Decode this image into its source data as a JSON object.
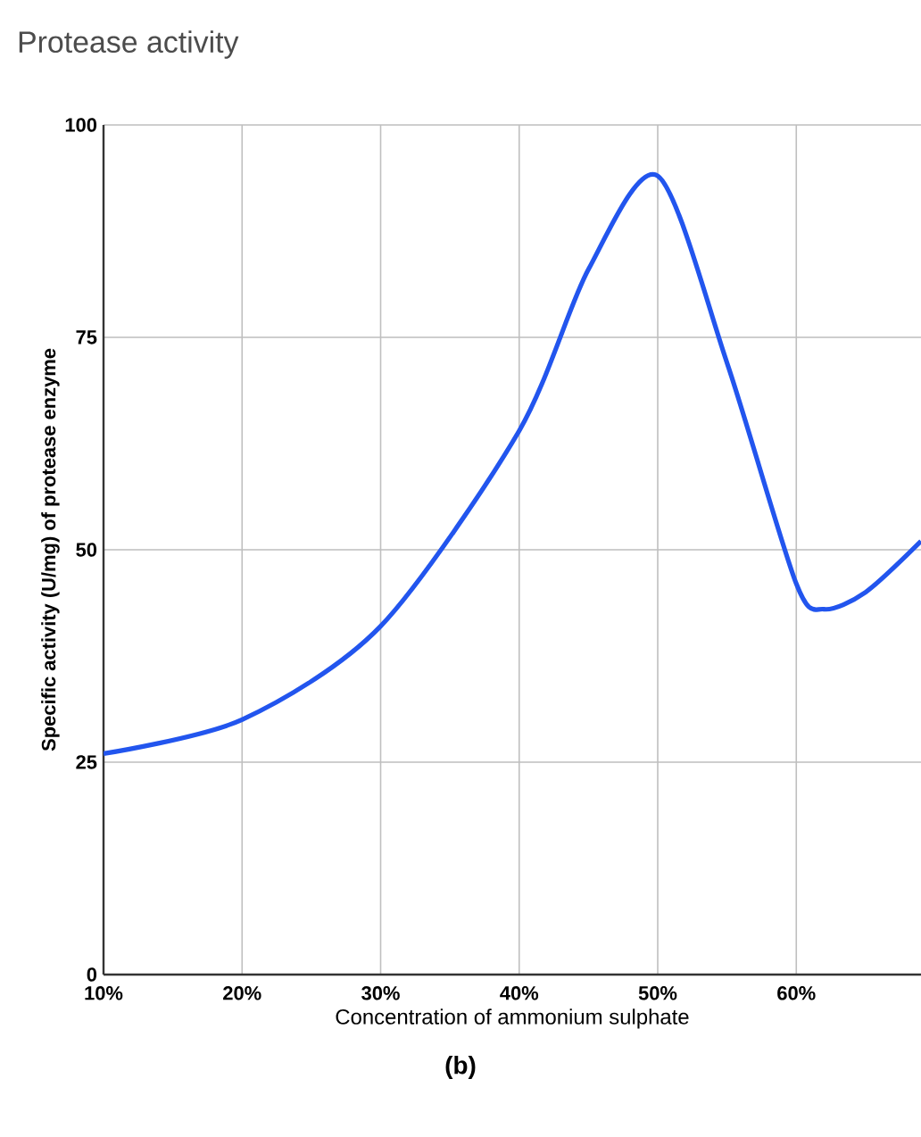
{
  "chart_data": {
    "type": "line",
    "title": "Protease activity",
    "xlabel": "Concentration of ammonium sulphate",
    "ylabel": "Specific activity (U/mg) of protease enzyme",
    "annotations": [
      "(b)"
    ],
    "x": [
      10,
      20,
      30,
      40,
      45,
      50,
      55,
      60,
      62,
      65,
      69
    ],
    "series": [
      {
        "color": "#2255ee",
        "values": [
          26,
          30,
          41,
          64,
          83,
          94,
          72,
          46,
          43,
          45,
          51
        ]
      }
    ],
    "xlim": [
      10,
      69
    ],
    "ylim": [
      0,
      100
    ],
    "xticks": [
      {
        "value": 10,
        "label": "10%"
      },
      {
        "value": 20,
        "label": "20%"
      },
      {
        "value": 30,
        "label": "30%"
      },
      {
        "value": 40,
        "label": "40%"
      },
      {
        "value": 50,
        "label": "50%"
      },
      {
        "value": 60,
        "label": "60%"
      }
    ],
    "yticks": [
      0,
      25,
      50,
      75,
      100
    ],
    "grid": true,
    "marker": "none",
    "line_style": "solid"
  }
}
